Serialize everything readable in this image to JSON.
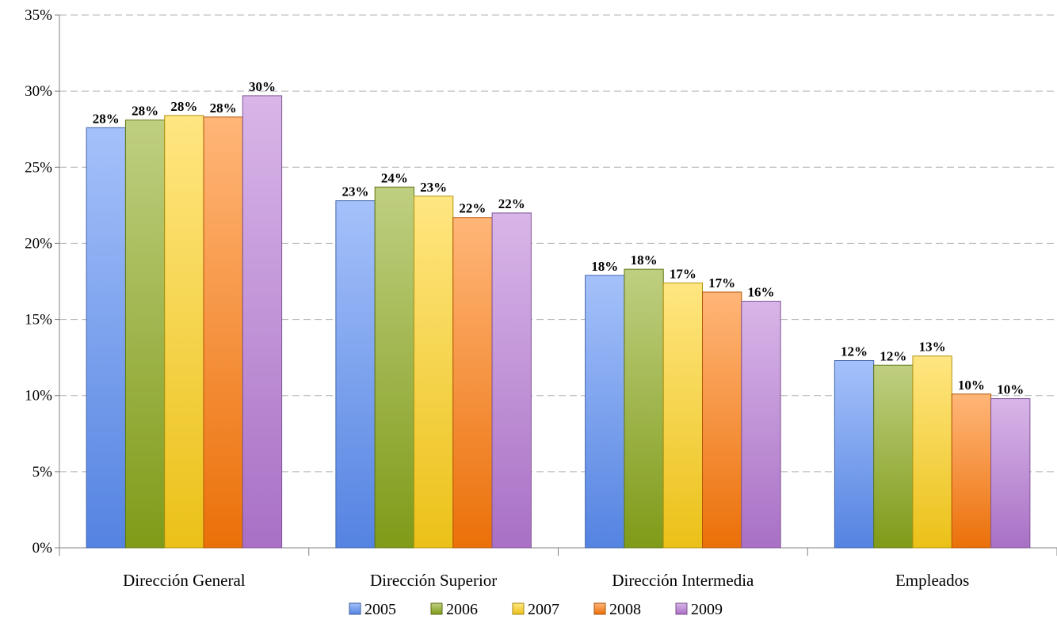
{
  "chart_data": {
    "type": "bar",
    "categories": [
      "Dirección General",
      "Dirección Superior",
      "Dirección Intermedia",
      "Empleados"
    ],
    "series": [
      {
        "name": "2005",
        "values": [
          27.6,
          22.8,
          17.9,
          12.3
        ],
        "labels": [
          "28%",
          "23%",
          "18%",
          "12%"
        ],
        "color": "#5b8ef5"
      },
      {
        "name": "2006",
        "values": [
          28.1,
          23.7,
          18.3,
          12.0
        ],
        "labels": [
          "28%",
          "24%",
          "18%",
          "12%"
        ],
        "color": "#8aa81a"
      },
      {
        "name": "2007",
        "values": [
          28.4,
          23.1,
          17.4,
          12.6
        ],
        "labels": [
          "28%",
          "23%",
          "17%",
          "13%"
        ],
        "color": "#ffd21a"
      },
      {
        "name": "2008",
        "values": [
          28.3,
          21.7,
          16.8,
          10.1
        ],
        "labels": [
          "28%",
          "22%",
          "17%",
          "10%"
        ],
        "color": "#ff7a0a"
      },
      {
        "name": "2009",
        "values": [
          29.7,
          22.0,
          16.2,
          9.8
        ],
        "labels": [
          "30%",
          "22%",
          "16%",
          "10%"
        ],
        "color": "#b87ad6"
      }
    ],
    "ylim": [
      0,
      35
    ],
    "y_ticks": [
      "0%",
      "5%",
      "10%",
      "15%",
      "20%",
      "25%",
      "30%",
      "35%"
    ],
    "y_tick_values": [
      0,
      5,
      10,
      15,
      20,
      25,
      30,
      35
    ],
    "grid": true,
    "legend_position": "bottom",
    "title": "",
    "xlabel": "",
    "ylabel": ""
  }
}
